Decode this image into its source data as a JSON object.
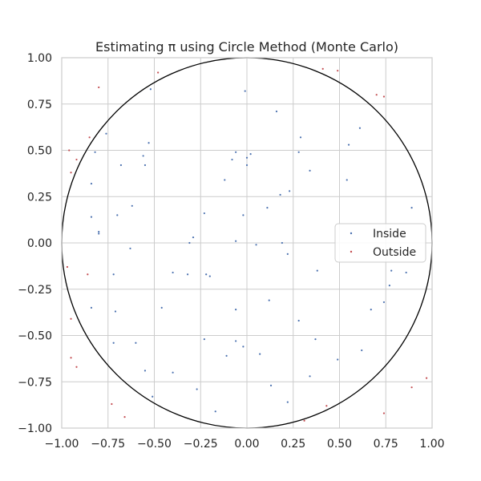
{
  "chart_data": {
    "type": "scatter",
    "title": "Estimating π using Circle Method (Monte Carlo)",
    "xlabel": "",
    "ylabel": "",
    "xlim": [
      -1.0,
      1.0
    ],
    "ylim": [
      -1.0,
      1.0
    ],
    "grid": true,
    "legend_placement": "center-right",
    "circle": {
      "center": [
        0,
        0
      ],
      "radius": 1,
      "color": "#000000"
    },
    "xticks": [
      "−1.00",
      "−0.75",
      "−0.50",
      "−0.25",
      "0.00",
      "0.25",
      "0.50",
      "0.75",
      "1.00"
    ],
    "yticks": [
      "−1.00",
      "−0.75",
      "−0.50",
      "−0.25",
      "0.00",
      "0.25",
      "0.50",
      "0.75",
      "1.00"
    ],
    "xtick_values": [
      -1.0,
      -0.75,
      -0.5,
      -0.25,
      0.0,
      0.25,
      0.5,
      0.75,
      1.0
    ],
    "ytick_values": [
      -1.0,
      -0.75,
      -0.5,
      -0.25,
      0.0,
      0.25,
      0.5,
      0.75,
      1.0
    ],
    "series": [
      {
        "name": "Inside",
        "color": "#4c72b0",
        "points": [
          [
            -0.52,
            0.83
          ],
          [
            -0.01,
            0.82
          ],
          [
            0.16,
            0.71
          ],
          [
            -0.76,
            0.59
          ],
          [
            -0.82,
            0.49
          ],
          [
            -0.68,
            0.42
          ],
          [
            -0.56,
            0.47
          ],
          [
            -0.55,
            0.42
          ],
          [
            -0.53,
            0.54
          ],
          [
            -0.06,
            0.49
          ],
          [
            -0.08,
            0.45
          ],
          [
            0.0,
            0.46
          ],
          [
            0.02,
            0.48
          ],
          [
            0.0,
            0.42
          ],
          [
            0.29,
            0.57
          ],
          [
            0.28,
            0.49
          ],
          [
            0.34,
            0.39
          ],
          [
            0.55,
            0.53
          ],
          [
            0.61,
            0.62
          ],
          [
            0.54,
            0.34
          ],
          [
            -0.84,
            0.32
          ],
          [
            -0.12,
            0.34
          ],
          [
            0.18,
            0.26
          ],
          [
            0.23,
            0.28
          ],
          [
            0.11,
            0.19
          ],
          [
            -0.62,
            0.2
          ],
          [
            -0.84,
            0.14
          ],
          [
            -0.7,
            0.15
          ],
          [
            -0.8,
            0.06
          ],
          [
            -0.8,
            0.05
          ],
          [
            -0.23,
            0.16
          ],
          [
            -0.02,
            0.15
          ],
          [
            0.89,
            0.19
          ],
          [
            -0.29,
            0.03
          ],
          [
            -0.31,
            0.0
          ],
          [
            -0.06,
            0.01
          ],
          [
            0.05,
            -0.01
          ],
          [
            0.19,
            0.0
          ],
          [
            0.22,
            -0.06
          ],
          [
            -0.63,
            -0.03
          ],
          [
            -0.4,
            -0.16
          ],
          [
            -0.32,
            -0.17
          ],
          [
            -0.22,
            -0.17
          ],
          [
            -0.2,
            -0.18
          ],
          [
            -0.72,
            -0.17
          ],
          [
            0.38,
            -0.15
          ],
          [
            0.78,
            -0.15
          ],
          [
            0.77,
            -0.23
          ],
          [
            0.74,
            -0.32
          ],
          [
            0.86,
            -0.16
          ],
          [
            0.12,
            -0.31
          ],
          [
            -0.46,
            -0.35
          ],
          [
            -0.06,
            -0.36
          ],
          [
            0.67,
            -0.36
          ],
          [
            -0.71,
            -0.37
          ],
          [
            -0.84,
            -0.35
          ],
          [
            0.28,
            -0.42
          ],
          [
            -0.23,
            -0.52
          ],
          [
            -0.06,
            -0.53
          ],
          [
            -0.02,
            -0.56
          ],
          [
            -0.72,
            -0.54
          ],
          [
            -0.6,
            -0.54
          ],
          [
            0.07,
            -0.6
          ],
          [
            -0.11,
            -0.61
          ],
          [
            0.37,
            -0.52
          ],
          [
            0.49,
            -0.63
          ],
          [
            0.62,
            -0.58
          ],
          [
            -0.55,
            -0.69
          ],
          [
            -0.4,
            -0.7
          ],
          [
            0.34,
            -0.72
          ],
          [
            0.13,
            -0.77
          ],
          [
            -0.27,
            -0.79
          ],
          [
            -0.51,
            -0.83
          ],
          [
            -0.17,
            -0.91
          ],
          [
            0.22,
            -0.86
          ]
        ]
      },
      {
        "name": "Outside",
        "color": "#c44e52",
        "points": [
          [
            -0.8,
            0.84
          ],
          [
            -0.48,
            0.92
          ],
          [
            0.41,
            0.94
          ],
          [
            0.49,
            0.93
          ],
          [
            0.7,
            0.8
          ],
          [
            0.74,
            0.79
          ],
          [
            -0.96,
            0.5
          ],
          [
            -0.95,
            0.38
          ],
          [
            -0.92,
            0.45
          ],
          [
            -0.85,
            0.57
          ],
          [
            -0.97,
            -0.13
          ],
          [
            -0.86,
            -0.17
          ],
          [
            -0.95,
            -0.41
          ],
          [
            -0.95,
            -0.62
          ],
          [
            -0.92,
            -0.67
          ],
          [
            -0.73,
            -0.87
          ],
          [
            -0.66,
            -0.94
          ],
          [
            0.31,
            -0.96
          ],
          [
            0.43,
            -0.88
          ],
          [
            0.74,
            -0.92
          ],
          [
            0.89,
            -0.78
          ],
          [
            0.97,
            -0.73
          ]
        ]
      }
    ]
  }
}
